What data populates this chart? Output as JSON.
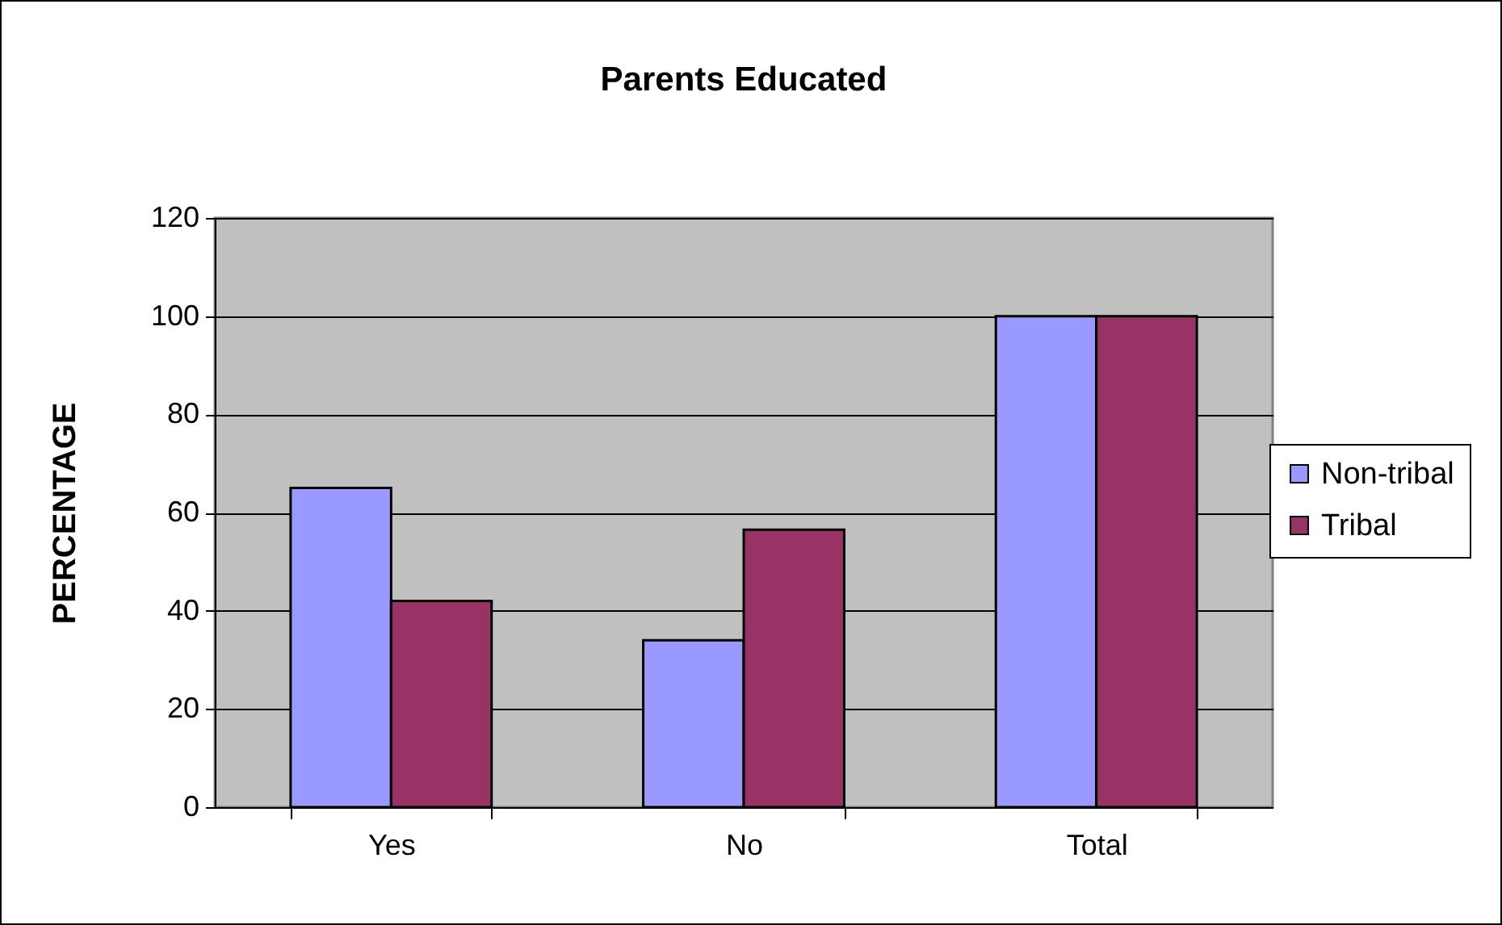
{
  "chart_data": {
    "type": "bar",
    "title": "Parents Educated",
    "ylabel": "PERCENTAGE",
    "categories": [
      "Yes",
      "No",
      "Total"
    ],
    "series": [
      {
        "name": "Non-tribal",
        "color": "#9999ff",
        "values": [
          65,
          34,
          100
        ]
      },
      {
        "name": "Tribal",
        "color": "#993366",
        "values": [
          42,
          56.5,
          100
        ]
      }
    ],
    "ylim": [
      0,
      120
    ],
    "yticks": [
      0,
      20,
      40,
      60,
      80,
      100,
      120
    ],
    "grid": "y",
    "legend": "right"
  }
}
